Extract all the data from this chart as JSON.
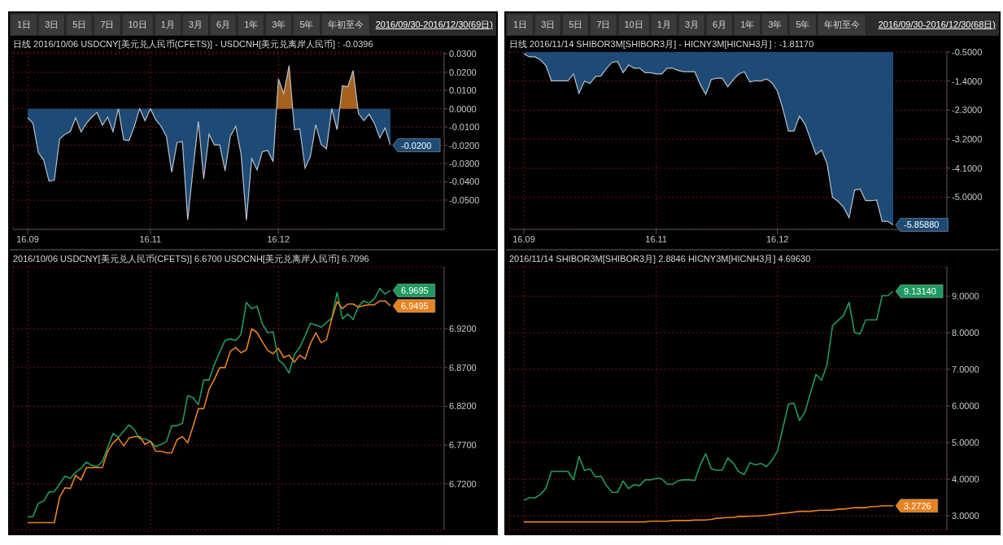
{
  "chart_data": [
    {
      "type": "area",
      "title": "日线 2016/10/06 USDCNY[美元兑人民币(CFETS)] - USDCNH[美元兑离岸人民币] : -0.0396",
      "subtitle": "2016/09/30-2016/12/30(69日)",
      "annotations": [
        "1日",
        "3日",
        "5日",
        "7日",
        "10日",
        "1月",
        "3月",
        "6月",
        "1年",
        "3年",
        "5年",
        "年初至今"
      ],
      "categories": [
        "16.09",
        null,
        null,
        null,
        null,
        null,
        null,
        null,
        null,
        null,
        null,
        null,
        null,
        null,
        null,
        null,
        null,
        null,
        null,
        null,
        null,
        null,
        null,
        "16.11",
        null,
        null,
        null,
        null,
        null,
        null,
        null,
        null,
        null,
        null,
        null,
        null,
        null,
        null,
        null,
        null,
        null,
        null,
        null,
        null,
        null,
        null,
        null,
        "16.12",
        null,
        null,
        null,
        null,
        null,
        null,
        null,
        null,
        null,
        null,
        null,
        null,
        null,
        null,
        null,
        null,
        null,
        null,
        null,
        null,
        null
      ],
      "series": [
        {
          "color": "#1d4b76",
          "colors": [
            "#1d4b76",
            "#1d4b76",
            "#1d4b76",
            "#1d4b76",
            "#1d4b76",
            "#1d4b76",
            "#1d4b76",
            "#1d4b76",
            "#1d4b76",
            "#1d4b76",
            "#1d4b76",
            "#1d4b76",
            "#1d4b76",
            "#1d4b76",
            "#1d4b76",
            "#1d4b76",
            "#1d4b76",
            "#1d4b76",
            "#1d4b76",
            "#1d4b76",
            "#1d4b76",
            "#1d4b76",
            "#1d4b76",
            "#1d4b76",
            "#1d4b76",
            "#1d4b76",
            "#1d4b76",
            "#1d4b76",
            "#1d4b76",
            "#1d4b76",
            "#1d4b76",
            "#1d4b76",
            "#1d4b76",
            "#1d4b76",
            "#1d4b76",
            "#1d4b76",
            "#1d4b76",
            "#1d4b76",
            "#1d4b76",
            "#1d4b76",
            "#1d4b76",
            "#1d4b76",
            "#1d4b76",
            "#1d4b76",
            "#1d4b76",
            "#1d4b76",
            "#1d4b76",
            "#a5611d",
            "#a5611d",
            "#a5611d",
            "#1d4b76",
            "#1d4b76",
            "#1d4b76",
            "#1d4b76",
            "#1d4b76",
            "#1d4b76",
            "#1d4b76",
            "#1d4b76",
            "#1d4b76",
            "#a5611d",
            "#a5611d",
            "#a5611d",
            "#1d4b76",
            "#1d4b76",
            "#1d4b76",
            "#1d4b76",
            "#1d4b76",
            "#1d4b76",
            "#1d4b76"
          ],
          "values": [
            -0.005,
            -0.008,
            -0.024,
            -0.028,
            -0.0396,
            -0.039,
            -0.0165,
            -0.014,
            -0.0124,
            -0.005,
            -0.0127,
            -0.008,
            -0.0046,
            -0.002,
            -0.009,
            -0.0046,
            -0.0126,
            0,
            -0.017,
            -0.0174,
            -0.0096,
            0,
            -0.0066,
            0,
            -0.006,
            -0.0096,
            -0.015,
            -0.0347,
            -0.0185,
            -0.018,
            -0.0608,
            -0.033,
            -0.007,
            -0.0383,
            -0.014,
            -0.0198,
            -0.0198,
            -0.0339,
            -0.015,
            -0.0096,
            -0.0248,
            -0.061,
            -0.0273,
            -0.0334,
            -0.0235,
            -0.0228,
            -0.029,
            0.0163,
            0.0083,
            0.0236,
            -0.0115,
            -0.011,
            -0.0325,
            -0.026,
            -0.0088,
            -0.0195,
            -0.022,
            0,
            -0.0115,
            0.0126,
            0.012,
            0.0209,
            -0.0025,
            -0.0065,
            -0.003,
            -0.008,
            -0.016,
            -0.0105,
            -0.02
          ],
          "value_labels": [
            null,
            null,
            null,
            null,
            null,
            null,
            null,
            null,
            null,
            null,
            null,
            null,
            null,
            null,
            null,
            null,
            null,
            null,
            null,
            null,
            null,
            null,
            null,
            null,
            null,
            null,
            null,
            null,
            null,
            null,
            null,
            null,
            null,
            null,
            null,
            null,
            null,
            null,
            null,
            null,
            null,
            null,
            null,
            null,
            null,
            null,
            null,
            null,
            null,
            null,
            null,
            null,
            null,
            null,
            null,
            null,
            null,
            null,
            null,
            null,
            null,
            null,
            null,
            null,
            null,
            null,
            null,
            null,
            "-0.0200"
          ]
        }
      ],
      "ylim": [
        -0.066,
        0.031
      ],
      "yticks": [
        {
          "value": 0.03,
          "label": "0.0300"
        },
        {
          "value": 0.02,
          "label": "0.0200"
        },
        {
          "value": 0.01,
          "label": "0.0100"
        },
        {
          "value": 0,
          "label": "0.0000"
        },
        {
          "value": -0.01,
          "label": "-0.0100"
        },
        {
          "value": -0.02,
          "label": "-0.0200"
        },
        {
          "value": -0.03,
          "label": "-0.0300"
        },
        {
          "value": -0.04,
          "label": "-0.0400"
        },
        {
          "value": -0.05,
          "label": "-0.0500"
        }
      ],
      "grid": true
    },
    {
      "type": "line",
      "title": "2016/10/06 USDCNY[美元兑人民币(CFETS)] 6.6700 USDCNH[美元兑离岸人民币] 6.7096",
      "categories": [
        null,
        null,
        null,
        null,
        null,
        null,
        null,
        null,
        null,
        null,
        null,
        null,
        null,
        null,
        null,
        null,
        null,
        null,
        null,
        null,
        null,
        null,
        null,
        null,
        null,
        null,
        null,
        null,
        null,
        null,
        null,
        null,
        null,
        null,
        null,
        null,
        null,
        null,
        null,
        null,
        null,
        null,
        null,
        null,
        null,
        null,
        null,
        null,
        null,
        null,
        null,
        null,
        null,
        null,
        null,
        null,
        null,
        null,
        null,
        null,
        null,
        null,
        null,
        null,
        null,
        null,
        null,
        null,
        null
      ],
      "series": [
        {
          "color": "#1f9a5e",
          "values": [
            6.677,
            6.678,
            6.695,
            6.698,
            6.7096,
            6.71,
            6.72,
            6.73,
            6.727,
            6.735,
            6.74,
            6.748,
            6.744,
            6.742,
            6.749,
            6.767,
            6.785,
            6.78,
            6.788,
            6.796,
            6.79,
            6.778,
            6.778,
            6.775,
            6.768,
            6.771,
            6.774,
            6.795,
            6.795,
            6.798,
            6.834,
            6.831,
            6.822,
            6.854,
            6.854,
            6.874,
            6.89,
            6.905,
            6.907,
            6.905,
            6.913,
            6.954,
            6.946,
            6.949,
            6.926,
            6.915,
            6.916,
            6.88,
            6.874,
            6.863,
            6.887,
            6.896,
            6.911,
            6.927,
            6.925,
            6.922,
            6.928,
            6.934,
            6.967,
            6.933,
            6.939,
            6.932,
            6.949,
            6.956,
            6.953,
            6.959,
            6.972,
            6.965,
            6.9695
          ],
          "value_labels": [
            null,
            null,
            null,
            null,
            null,
            null,
            null,
            null,
            null,
            null,
            null,
            null,
            null,
            null,
            null,
            null,
            null,
            null,
            null,
            null,
            null,
            null,
            null,
            null,
            null,
            null,
            null,
            null,
            null,
            null,
            null,
            null,
            null,
            null,
            null,
            null,
            null,
            null,
            null,
            null,
            null,
            null,
            null,
            null,
            null,
            null,
            null,
            null,
            null,
            null,
            null,
            null,
            null,
            null,
            null,
            null,
            null,
            null,
            null,
            null,
            null,
            null,
            null,
            null,
            null,
            null,
            null,
            null,
            "6.9695"
          ]
        },
        {
          "color": "#e8821e",
          "values": [
            6.67,
            6.67,
            6.67,
            6.67,
            6.67,
            6.67,
            6.703,
            6.715,
            6.714,
            6.731,
            6.725,
            6.741,
            6.741,
            6.741,
            6.741,
            6.762,
            6.773,
            6.779,
            6.769,
            6.779,
            6.781,
            6.781,
            6.771,
            6.775,
            6.762,
            6.762,
            6.76,
            6.76,
            6.777,
            6.781,
            6.773,
            6.794,
            6.817,
            6.817,
            6.842,
            6.855,
            6.87,
            6.87,
            6.891,
            6.896,
            6.889,
            6.893,
            6.92,
            6.915,
            6.903,
            6.892,
            6.888,
            6.895,
            6.883,
            6.886,
            6.877,
            6.886,
            6.881,
            6.901,
            6.915,
            6.902,
            6.906,
            6.933,
            6.955,
            6.946,
            6.952,
            6.952,
            6.948,
            6.95,
            6.951,
            6.951,
            6.956,
            6.956,
            6.9495
          ],
          "value_labels": [
            null,
            null,
            null,
            null,
            null,
            null,
            null,
            null,
            null,
            null,
            null,
            null,
            null,
            null,
            null,
            null,
            null,
            null,
            null,
            null,
            null,
            null,
            null,
            null,
            null,
            null,
            null,
            null,
            null,
            null,
            null,
            null,
            null,
            null,
            null,
            null,
            null,
            null,
            null,
            null,
            null,
            null,
            null,
            null,
            null,
            null,
            null,
            null,
            null,
            null,
            null,
            null,
            null,
            null,
            null,
            null,
            null,
            null,
            null,
            null,
            null,
            null,
            null,
            null,
            null,
            null,
            null,
            null,
            "6.9495"
          ]
        }
      ],
      "ylim": [
        6.66,
        7.0
      ],
      "yticks": [
        {
          "value": 6.72,
          "label": "6.7200"
        },
        {
          "value": 6.77,
          "label": "6.7700"
        },
        {
          "value": 6.82,
          "label": "6.8200"
        },
        {
          "value": 6.87,
          "label": "6.8700"
        },
        {
          "value": 6.92,
          "label": "6.9200"
        }
      ],
      "grid": true,
      "tick_labels": "y"
    },
    {
      "type": "area",
      "title": "日线 2016/11/14 SHIBOR3M[SHIBOR3月] - HICNY3M[HICNH3月] : -1.81170",
      "subtitle": "2016/09/30-2016/12/30(68日)",
      "annotations": [
        "1日",
        "3日",
        "5日",
        "7日",
        "10日",
        "1月",
        "3月",
        "6月",
        "1年",
        "3年",
        "5年",
        "年初至今"
      ],
      "categories": [
        "16.09",
        null,
        null,
        null,
        null,
        null,
        null,
        null,
        null,
        null,
        null,
        null,
        null,
        null,
        null,
        null,
        null,
        null,
        null,
        null,
        null,
        null,
        null,
        null,
        "16.11",
        null,
        null,
        null,
        null,
        null,
        null,
        null,
        null,
        null,
        null,
        null,
        null,
        null,
        null,
        null,
        null,
        null,
        null,
        null,
        null,
        null,
        "16.12",
        null,
        null,
        null,
        null,
        null,
        null,
        null,
        null,
        null,
        null,
        null,
        null,
        null,
        null,
        null,
        null,
        null,
        null,
        null,
        null,
        null
      ],
      "series": [
        {
          "color": "#1d4b76",
          "values": [
            -0.56,
            -0.65,
            -0.65,
            -0.74,
            -0.92,
            -1.39,
            -1.39,
            -1.39,
            -1.39,
            -1.18,
            -1.78,
            -1.4,
            -1.47,
            -1.26,
            -1.24,
            -1.0,
            -0.82,
            -0.79,
            -1.14,
            -0.9,
            -1.0,
            -1.0,
            -1.14,
            -1.14,
            -1.18,
            -1.18,
            -1.0,
            -1.0,
            -1.07,
            -1.11,
            -1.11,
            -1.11,
            -1.5,
            -1.8117,
            -1.35,
            -1.31,
            -1.31,
            -1.58,
            -1.35,
            -1.18,
            -1.11,
            -1.43,
            -1.39,
            -1.4,
            -1.33,
            -1.45,
            -1.71,
            -2.27,
            -2.95,
            -2.95,
            -2.49,
            -2.73,
            -3.21,
            -3.68,
            -3.54,
            -3.96,
            -5.01,
            -5.13,
            -5.31,
            -5.64,
            -4.78,
            -4.75,
            -5.11,
            -5.11,
            -5.09,
            -5.75,
            -5.75,
            -5.8588
          ],
          "value_labels": [
            null,
            null,
            null,
            null,
            null,
            null,
            null,
            null,
            null,
            null,
            null,
            null,
            null,
            null,
            null,
            null,
            null,
            null,
            null,
            null,
            null,
            null,
            null,
            null,
            null,
            null,
            null,
            null,
            null,
            null,
            null,
            null,
            null,
            null,
            null,
            null,
            null,
            null,
            null,
            null,
            null,
            null,
            null,
            null,
            null,
            null,
            null,
            null,
            null,
            null,
            null,
            null,
            null,
            null,
            null,
            null,
            null,
            null,
            null,
            null,
            null,
            null,
            null,
            null,
            null,
            null,
            null,
            "-5.85880"
          ]
        }
      ],
      "ylim": [
        -6.0,
        -0.5
      ],
      "yticks": [
        {
          "value": -0.5,
          "label": "-0.5000"
        },
        {
          "value": -1.4,
          "label": "-1.4000"
        },
        {
          "value": -2.3,
          "label": "-2.3000"
        },
        {
          "value": -3.2,
          "label": "-3.2000"
        },
        {
          "value": -4.1,
          "label": "-4.1000"
        },
        {
          "value": -5.0,
          "label": "-5.0000"
        }
      ],
      "grid": true
    },
    {
      "type": "line",
      "title": "2016/11/14 SHIBOR3M[SHIBOR3月] 2.8846 HICNY3M[HICNH3月] 4.69630",
      "categories": [
        null,
        null,
        null,
        null,
        null,
        null,
        null,
        null,
        null,
        null,
        null,
        null,
        null,
        null,
        null,
        null,
        null,
        null,
        null,
        null,
        null,
        null,
        null,
        null,
        null,
        null,
        null,
        null,
        null,
        null,
        null,
        null,
        null,
        null,
        null,
        null,
        null,
        null,
        null,
        null,
        null,
        null,
        null,
        null,
        null,
        null,
        null,
        null,
        null,
        null,
        null,
        null,
        null,
        null,
        null,
        null,
        null,
        null,
        null,
        null,
        null,
        null,
        null,
        null,
        null,
        null,
        null,
        null
      ],
      "series": [
        {
          "color": "#1f9a5e",
          "values": [
            3.42,
            3.49,
            3.49,
            3.58,
            3.75,
            4.21,
            4.21,
            4.21,
            4.21,
            3.98,
            4.62,
            4.24,
            4.28,
            4.06,
            4.08,
            3.82,
            3.64,
            3.64,
            3.95,
            3.74,
            3.85,
            3.82,
            3.98,
            3.98,
            4.02,
            4.01,
            3.86,
            3.86,
            3.96,
            3.98,
            3.98,
            3.96,
            4.39,
            4.6963,
            4.28,
            4.24,
            4.25,
            4.58,
            4.43,
            4.2,
            4.13,
            4.45,
            4.39,
            4.43,
            4.34,
            4.51,
            4.77,
            5.4,
            6.05,
            6.07,
            5.6,
            5.83,
            6.36,
            6.86,
            6.7,
            7.13,
            8.19,
            8.33,
            8.47,
            8.83,
            8.0,
            7.97,
            8.35,
            8.35,
            8.35,
            9.01,
            9.01,
            9.1314
          ],
          "value_labels": [
            null,
            null,
            null,
            null,
            null,
            null,
            null,
            null,
            null,
            null,
            null,
            null,
            null,
            null,
            null,
            null,
            null,
            null,
            null,
            null,
            null,
            null,
            null,
            null,
            null,
            null,
            null,
            null,
            null,
            null,
            null,
            null,
            null,
            null,
            null,
            null,
            null,
            null,
            null,
            null,
            null,
            null,
            null,
            null,
            null,
            null,
            null,
            null,
            null,
            null,
            null,
            null,
            null,
            null,
            null,
            null,
            null,
            null,
            null,
            null,
            null,
            null,
            null,
            null,
            null,
            null,
            null,
            "9.13140"
          ]
        },
        {
          "color": "#e8821e",
          "values": [
            2.83,
            2.83,
            2.83,
            2.83,
            2.83,
            2.83,
            2.83,
            2.83,
            2.83,
            2.83,
            2.83,
            2.83,
            2.83,
            2.83,
            2.83,
            2.83,
            2.83,
            2.83,
            2.83,
            2.83,
            2.83,
            2.83,
            2.83,
            2.85,
            2.85,
            2.85,
            2.85,
            2.87,
            2.87,
            2.87,
            2.87,
            2.88,
            2.88,
            2.8846,
            2.9,
            2.93,
            2.94,
            2.95,
            2.95,
            2.98,
            2.98,
            2.99,
            2.99,
            3.0,
            3.01,
            3.03,
            3.05,
            3.07,
            3.08,
            3.1,
            3.12,
            3.12,
            3.12,
            3.14,
            3.15,
            3.15,
            3.15,
            3.18,
            3.18,
            3.2,
            3.22,
            3.22,
            3.22,
            3.25,
            3.25,
            3.2726,
            3.2726,
            3.2726
          ],
          "value_labels": [
            null,
            null,
            null,
            null,
            null,
            null,
            null,
            null,
            null,
            null,
            null,
            null,
            null,
            null,
            null,
            null,
            null,
            null,
            null,
            null,
            null,
            null,
            null,
            null,
            null,
            null,
            null,
            null,
            null,
            null,
            null,
            null,
            null,
            null,
            null,
            null,
            null,
            null,
            null,
            null,
            null,
            null,
            null,
            null,
            null,
            null,
            null,
            null,
            null,
            null,
            null,
            null,
            null,
            null,
            null,
            null,
            null,
            null,
            null,
            null,
            null,
            null,
            null,
            null,
            null,
            null,
            null,
            "3.2726"
          ]
        }
      ],
      "ylim": [
        2.6,
        9.8
      ],
      "yticks": [
        {
          "value": 3,
          "label": "3.0000"
        },
        {
          "value": 4,
          "label": "4.0000"
        },
        {
          "value": 5,
          "label": "5.0000"
        },
        {
          "value": 6,
          "label": "6.0000"
        },
        {
          "value": 7,
          "label": "7.0000"
        },
        {
          "value": 8,
          "label": "8.0000"
        },
        {
          "value": 9,
          "label": "9.0000"
        }
      ],
      "grid": true,
      "tick_labels": "y"
    }
  ]
}
